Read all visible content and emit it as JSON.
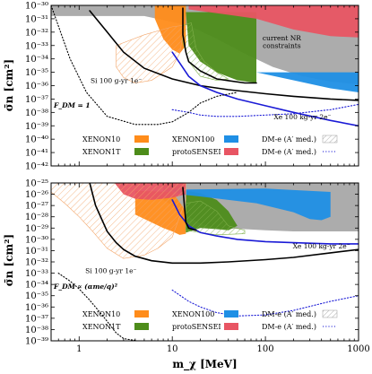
{
  "chart_data": [
    {
      "type": "area",
      "panel": "top",
      "x_scale": "log",
      "y_scale": "log",
      "xlim": [
        0.5,
        1000
      ],
      "ylim_exp": [
        -42,
        -30
      ],
      "y_tick_labels": [
        "10^-30",
        "10^-31",
        "10^-32",
        "10^-33",
        "10^-34",
        "10^-35",
        "10^-36",
        "10^-37",
        "10^-38",
        "10^-39",
        "10^-40",
        "10^-41",
        "10^-42"
      ],
      "ylabel": "σ̄n [cm²]",
      "form_factor_label": "F_DM = 1",
      "annotations": [
        {
          "text": "current NR",
          "x": 150,
          "y": -32.6
        },
        {
          "text": "constraints",
          "x": 150,
          "y": -33.2
        },
        {
          "text": "Si 100 g-yr 1e⁻",
          "x": 2.5,
          "y": -35.8
        },
        {
          "text": "Xe 100 kg-yr 2e⁻",
          "x": 250,
          "y": -38.5
        }
      ],
      "regions": [
        {
          "name": "current NR constraints",
          "color": "#a8a8a8",
          "points": [
            [
              0.5,
              -30.8
            ],
            [
              5,
              -30.8
            ],
            [
              15,
              -31.5
            ],
            [
              30,
              -32.5
            ],
            [
              60,
              -33.6
            ],
            [
              120,
              -34.6
            ],
            [
              250,
              -35.3
            ],
            [
              500,
              -35.7
            ],
            [
              1000,
              -35.9
            ],
            [
              1000,
              -30
            ],
            [
              0.5,
              -30
            ]
          ]
        },
        {
          "name": "XENON10",
          "color": "#ff8c1a",
          "points": [
            [
              6.5,
              -30
            ],
            [
              6.5,
              -31.0
            ],
            [
              8,
              -32.5
            ],
            [
              10,
              -33.3
            ],
            [
              12,
              -33.6
            ],
            [
              14,
              -33.0
            ],
            [
              14,
              -30
            ]
          ]
        },
        {
          "name": "XENON1T",
          "color": "#4d8c1a",
          "points": [
            [
              14,
              -30.5
            ],
            [
              15,
              -33.0
            ],
            [
              20,
              -34.2
            ],
            [
              30,
              -35.0
            ],
            [
              50,
              -35.6
            ],
            [
              80,
              -35.8
            ],
            [
              80,
              -30.5
            ]
          ]
        },
        {
          "name": "XENON100",
          "color": "#1f8fe5",
          "points": [
            [
              80,
              -35.0
            ],
            [
              200,
              -35.6
            ],
            [
              500,
              -36.2
            ],
            [
              1000,
              -36.5
            ],
            [
              1000,
              -35.0
            ]
          ]
        },
        {
          "name": "protoSENSEI",
          "color": "#e85563",
          "points": [
            [
              15,
              -30
            ],
            [
              1000,
              -30
            ],
            [
              1000,
              -32.4
            ],
            [
              500,
              -32.3
            ],
            [
              200,
              -31.8
            ],
            [
              80,
              -31.0
            ],
            [
              40,
              -30.7
            ],
            [
              15,
              -30.3
            ]
          ]
        }
      ],
      "hatched_regions": [
        {
          "name": "DM-e (A′ med.) hatch 1",
          "color": "#f3a66a",
          "points": [
            [
              2.5,
              -33.0
            ],
            [
              5,
              -32.2
            ],
            [
              10,
              -31.6
            ],
            [
              13,
              -31.5
            ],
            [
              13,
              -32.2
            ],
            [
              12,
              -33.6
            ],
            [
              10,
              -34.6
            ],
            [
              6,
              -35.6
            ],
            [
              4,
              -35.8
            ],
            [
              3,
              -35.4
            ],
            [
              2.5,
              -34.6
            ]
          ]
        },
        {
          "name": "DM-e (A′ med.) hatch 2",
          "color": "#7fb04a",
          "points": [
            [
              13,
              -31.5
            ],
            [
              16,
              -31.3
            ],
            [
              18,
              -33.2
            ],
            [
              22,
              -34.2
            ],
            [
              30,
              -35.0
            ],
            [
              40,
              -35.5
            ],
            [
              30,
              -35.6
            ],
            [
              20,
              -35.3
            ],
            [
              15,
              -34.2
            ],
            [
              13,
              -32.8
            ]
          ]
        }
      ],
      "series": [
        {
          "name": "Si 100 g-yr 1e⁻",
          "color": "#000000",
          "style": "solid",
          "x": [
            1.3,
            2,
            3,
            5,
            10,
            20,
            40,
            100,
            200,
            500,
            1000
          ],
          "y": [
            -30.4,
            -32.0,
            -33.5,
            -34.7,
            -35.5,
            -36.0,
            -36.3,
            -36.6,
            -36.8,
            -37.0,
            -37.1
          ]
        },
        {
          "name": "Xe 100 kg-yr 2e⁻",
          "color": "#1a1ad6",
          "style": "solid",
          "x": [
            10,
            12,
            15,
            20,
            30,
            50,
            100,
            200,
            500,
            1000
          ],
          "y": [
            -33.5,
            -34.3,
            -35.3,
            -36.0,
            -36.5,
            -37.0,
            -37.5,
            -38.0,
            -38.6,
            -39.0
          ]
        },
        {
          "name": "DM-e (A′ med.) projection",
          "color": "#1a1ad6",
          "style": "dotted",
          "x": [
            10,
            15,
            20,
            30,
            50,
            100,
            200,
            500,
            1000
          ],
          "y": [
            -37.8,
            -38.0,
            -38.2,
            -38.3,
            -38.3,
            -38.2,
            -38.1,
            -37.8,
            -37.4
          ]
        },
        {
          "name": "DM-e (A′ med.) projection (Si)",
          "color": "#000000",
          "style": "dotted",
          "x": [
            0.5,
            0.8,
            1.2,
            2,
            4,
            7,
            10,
            15,
            20,
            30,
            50
          ],
          "y": [
            -30.0,
            -34.0,
            -36.5,
            -38.3,
            -38.9,
            -38.9,
            -38.7,
            -38.0,
            -37.3,
            -36.8,
            -36.5
          ]
        },
        {
          "name": "XENON1T boundary",
          "color": "#000000",
          "style": "solid",
          "x": [
            13,
            13,
            14,
            15,
            20,
            30,
            60,
            80
          ],
          "y": [
            -30.2,
            -32.2,
            -33.5,
            -34.2,
            -34.9,
            -35.5,
            -35.8,
            -35.8
          ]
        }
      ],
      "legend": [
        {
          "label": "XENON10",
          "color": "#ff8c1a",
          "kind": "box"
        },
        {
          "label": "XENON100",
          "color": "#1f8fe5",
          "kind": "box"
        },
        {
          "label": "DM-e (A′ med.)",
          "color": "#999999",
          "kind": "hatch"
        },
        {
          "label": "XENON1T",
          "color": "#4d8c1a",
          "kind": "box"
        },
        {
          "label": "protoSENSEI",
          "color": "#e85563",
          "kind": "box"
        },
        {
          "label": "DM-e (A′ med.)",
          "color": "#1a1ad6",
          "kind": "dotted"
        }
      ]
    },
    {
      "type": "area",
      "panel": "bottom",
      "x_scale": "log",
      "y_scale": "log",
      "xlim": [
        0.5,
        1000
      ],
      "ylim_exp": [
        -39,
        -25
      ],
      "x_tick_labels": [
        "1",
        "10",
        "100",
        "1000"
      ],
      "xlabel": "m_χ [MeV]",
      "y_tick_labels": [
        "10^-25",
        "10^-26",
        "10^-27",
        "10^-28",
        "10^-29",
        "10^-30",
        "10^-31",
        "10^-32",
        "10^-33",
        "10^-34",
        "10^-35",
        "10^-36",
        "10^-37",
        "10^-38",
        "10^-39"
      ],
      "ylabel": "σ̄n [cm²]",
      "form_factor_label": "F_DM ∝ (αme/q)²",
      "annotations": [
        {
          "text": "Si 100 g-yr 1e⁻",
          "x": 2.2,
          "y": -33.0
        },
        {
          "text": "Xe 100 kg-yr 2e⁻",
          "x": 400,
          "y": -30.8
        }
      ],
      "regions": [
        {
          "name": "current NR constraints",
          "color": "#a8a8a8",
          "points": [
            [
              8,
              -25
            ],
            [
              1000,
              -25
            ],
            [
              1000,
              -29.3
            ],
            [
              400,
              -29.3
            ],
            [
              200,
              -29.3
            ],
            [
              100,
              -29.2
            ],
            [
              60,
              -29.1
            ],
            [
              30,
              -29.0
            ],
            [
              20,
              -28.6
            ],
            [
              15,
              -28.0
            ],
            [
              12,
              -27.5
            ],
            [
              10,
              -27.0
            ],
            [
              8,
              -26.5
            ]
          ]
        },
        {
          "name": "XENON10",
          "color": "#ff8c1a",
          "points": [
            [
              4,
              -25.7
            ],
            [
              10,
              -25.8
            ],
            [
              14,
              -27.5
            ],
            [
              14,
              -29.5
            ],
            [
              12,
              -29.6
            ],
            [
              10,
              -29.3
            ],
            [
              8,
              -29.0
            ],
            [
              6,
              -28.5
            ],
            [
              4,
              -27.8
            ]
          ]
        },
        {
          "name": "XENON1T",
          "color": "#4d8c1a",
          "points": [
            [
              14,
              -25.7
            ],
            [
              20,
              -25.9
            ],
            [
              30,
              -26.5
            ],
            [
              40,
              -27.5
            ],
            [
              50,
              -28.8
            ],
            [
              40,
              -29.2
            ],
            [
              30,
              -29.1
            ],
            [
              20,
              -29.0
            ],
            [
              14,
              -29.4
            ]
          ]
        },
        {
          "name": "XENON100",
          "color": "#1f8fe5",
          "points": [
            [
              10,
              -25.6
            ],
            [
              100,
              -25.5
            ],
            [
              500,
              -25.8
            ],
            [
              500,
              -28.0
            ],
            [
              400,
              -28.3
            ],
            [
              300,
              -28.2
            ],
            [
              200,
              -27.6
            ],
            [
              80,
              -26.8
            ],
            [
              40,
              -26.5
            ],
            [
              20,
              -26.2
            ],
            [
              12,
              -26.0
            ]
          ]
        },
        {
          "name": "protoSENSEI",
          "color": "#e85563",
          "points": [
            [
              2.4,
              -25
            ],
            [
              14,
              -25
            ],
            [
              14,
              -26.0
            ],
            [
              10,
              -26.3
            ],
            [
              6,
              -26.5
            ],
            [
              4,
              -26.4
            ],
            [
              3,
              -26.0
            ]
          ]
        }
      ],
      "hatched_regions": [
        {
          "name": "DM-e (A′ med.) hatch 1",
          "color": "#f3a66a",
          "points": [
            [
              0.5,
              -25
            ],
            [
              4,
              -25
            ],
            [
              14,
              -25
            ],
            [
              14,
              -26.5
            ],
            [
              12,
              -28.0
            ],
            [
              10,
              -29.8
            ],
            [
              7,
              -30.8
            ],
            [
              5,
              -31.4
            ],
            [
              3,
              -31.7
            ],
            [
              2,
              -30.8
            ],
            [
              1.4,
              -29.3
            ],
            [
              1,
              -28.0
            ],
            [
              0.7,
              -26.8
            ],
            [
              0.5,
              -25.8
            ]
          ]
        },
        {
          "name": "DM-e (A′ med.) hatch 2",
          "color": "#7fb04a",
          "points": [
            [
              14,
              -26.8
            ],
            [
              20,
              -26.6
            ],
            [
              30,
              -27.5
            ],
            [
              40,
              -28.8
            ],
            [
              60,
              -29.2
            ],
            [
              60,
              -29.5
            ],
            [
              30,
              -29.6
            ],
            [
              20,
              -29.4
            ],
            [
              14,
              -29.2
            ]
          ]
        }
      ],
      "series": [
        {
          "name": "Si 100 g-yr 1e⁻",
          "color": "#000000",
          "style": "solid",
          "x": [
            1.3,
            1.5,
            2,
            2.5,
            3,
            4,
            6,
            10,
            20,
            40,
            100,
            200,
            500,
            1000
          ],
          "y": [
            -25,
            -27.0,
            -29.3,
            -30.3,
            -30.9,
            -31.5,
            -31.9,
            -32.1,
            -32.1,
            -32.0,
            -31.8,
            -31.6,
            -31.2,
            -30.9
          ]
        },
        {
          "name": "Xe 100 kg-yr 2e⁻",
          "color": "#1a1ad6",
          "style": "solid",
          "x": [
            10,
            12,
            15,
            20,
            30,
            50,
            100,
            200,
            500,
            1000
          ],
          "y": [
            -26.5,
            -27.8,
            -28.8,
            -29.4,
            -29.7,
            -30.0,
            -30.2,
            -30.3,
            -30.4,
            -30.4
          ]
        },
        {
          "name": "DM-e (A′ med.) projection",
          "color": "#1a1ad6",
          "style": "dotted",
          "x": [
            10,
            15,
            20,
            30,
            50,
            100,
            200,
            500,
            1000
          ],
          "y": [
            -34.5,
            -35.5,
            -36.0,
            -36.5,
            -36.8,
            -36.7,
            -36.3,
            -35.5,
            -35.0
          ]
        },
        {
          "name": "DM-e (A′ med.) projection (Si)",
          "color": "#000000",
          "style": "dotted",
          "x": [
            0.6,
            0.8,
            1,
            1.3,
            1.8,
            2.5,
            3,
            3.5,
            4
          ],
          "y": [
            -33.0,
            -33.7,
            -34.4,
            -35.4,
            -36.8,
            -38.3,
            -38.8,
            -38.9,
            -38.95
          ]
        },
        {
          "name": "XENON1T boundary",
          "color": "#000000",
          "style": "solid",
          "x": [
            13,
            13.5,
            14,
            15,
            18
          ],
          "y": [
            -25.4,
            -27.0,
            -28.5,
            -29.0,
            -29.2
          ]
        }
      ],
      "legend": [
        {
          "label": "XENON10",
          "color": "#ff8c1a",
          "kind": "box"
        },
        {
          "label": "XENON100",
          "color": "#1f8fe5",
          "kind": "box"
        },
        {
          "label": "DM-e (A′ med.)",
          "color": "#999999",
          "kind": "hatch"
        },
        {
          "label": "XENON1T",
          "color": "#4d8c1a",
          "kind": "box"
        },
        {
          "label": "protoSENSEI",
          "color": "#e85563",
          "kind": "box"
        },
        {
          "label": "DM-e (A′ med.)",
          "color": "#1a1ad6",
          "kind": "dotted"
        }
      ]
    }
  ]
}
